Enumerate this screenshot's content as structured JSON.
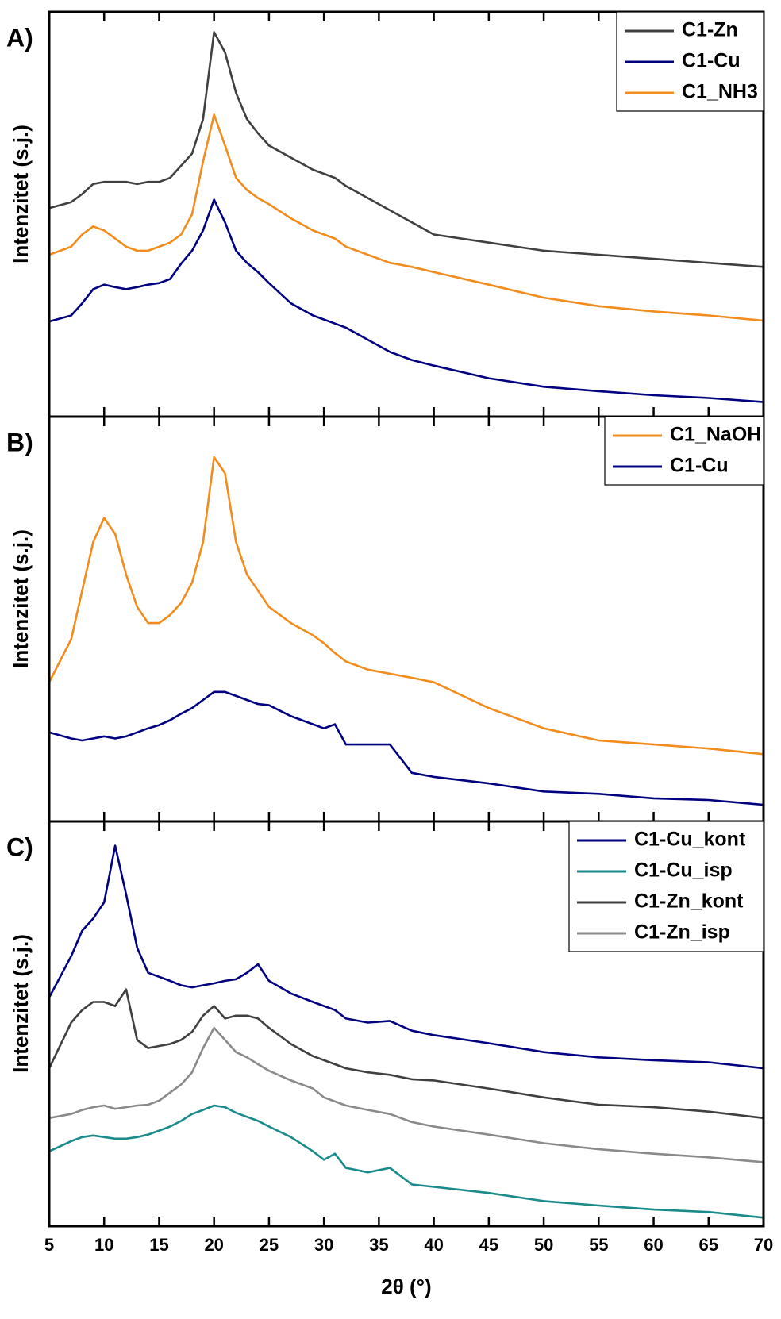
{
  "chart_data": [
    {
      "type": "line",
      "label": "A)",
      "y_label": "Intenzitet (s.j.)",
      "legend": "upper right",
      "show_xtick_labels": false,
      "xlim": [
        5,
        70
      ],
      "xticks": [
        5,
        10,
        15,
        20,
        25,
        30,
        35,
        40,
        45,
        50,
        55,
        60,
        65,
        70
      ],
      "ylim": [
        0,
        100
      ],
      "x": [
        5,
        7,
        8,
        9,
        10,
        11,
        12,
        13,
        14,
        15,
        16,
        17,
        18,
        19,
        20,
        21,
        22,
        23,
        24,
        25,
        27,
        29,
        30,
        31,
        32,
        34,
        36,
        38,
        40,
        45,
        50,
        55,
        60,
        65,
        70
      ],
      "series": [
        {
          "name": "C1-Zn",
          "color": "#404040",
          "values": [
            51.5,
            53,
            55,
            57.5,
            58,
            58,
            58,
            57.5,
            58,
            58,
            59,
            62,
            65,
            73.5,
            95,
            90,
            80,
            73.5,
            70,
            67,
            64,
            61,
            60,
            59,
            57,
            54,
            51,
            48,
            45,
            43,
            41,
            40,
            39,
            38,
            37
          ]
        },
        {
          "name": "C1-Cu",
          "color": "#000080",
          "values": [
            23.5,
            25,
            28,
            31.5,
            32.6,
            32,
            31.5,
            32,
            32.6,
            33,
            34,
            37.8,
            41,
            46,
            53.6,
            48,
            41,
            38,
            35.7,
            33,
            28,
            25,
            24,
            23,
            22,
            19,
            16,
            14,
            12.6,
            9.5,
            7.4,
            6.3,
            5.3,
            4.6,
            3.6
          ]
        },
        {
          "name": "C1_NH3",
          "color": "#f28c1c",
          "values": [
            40,
            42,
            45,
            47,
            46,
            44,
            42,
            41,
            41,
            42,
            43,
            45,
            50,
            63,
            74.6,
            67,
            59,
            56,
            54,
            52.5,
            49,
            46,
            45,
            44,
            42,
            40,
            38,
            37,
            35.7,
            32.6,
            29.4,
            27.3,
            26,
            25,
            23.7
          ]
        }
      ]
    },
    {
      "type": "line",
      "label": "B)",
      "y_label": "Intenzitet (s.j.)",
      "legend": "upper right",
      "show_xtick_labels": false,
      "xlim": [
        5,
        70
      ],
      "xticks": [
        5,
        10,
        15,
        20,
        25,
        30,
        35,
        40,
        45,
        50,
        55,
        60,
        65,
        70
      ],
      "ylim": [
        0,
        100
      ],
      "x": [
        5,
        7,
        8,
        9,
        10,
        11,
        12,
        13,
        14,
        15,
        16,
        17,
        18,
        19,
        20,
        21,
        22,
        23,
        24,
        25,
        27,
        29,
        30,
        31,
        32,
        34,
        36,
        38,
        40,
        45,
        50,
        55,
        60,
        65,
        70
      ],
      "series": [
        {
          "name": "C1_NaOH",
          "color": "#f28c1c",
          "values": [
            34.4,
            45,
            57,
            69,
            75,
            71,
            61,
            53,
            49,
            49,
            51,
            54,
            59,
            69,
            90,
            86,
            69,
            61,
            57,
            53,
            49,
            46,
            44,
            41.6,
            39.5,
            37.5,
            36.5,
            35.5,
            34.4,
            28,
            23,
            20,
            19,
            18,
            16.6
          ]
        },
        {
          "name": "C1-Cu",
          "color": "#000080",
          "values": [
            22,
            20.5,
            20,
            20.5,
            21,
            20.5,
            21,
            22,
            23,
            23.8,
            25,
            26.6,
            28,
            30,
            32,
            32,
            31,
            30,
            29,
            28.7,
            26,
            24,
            23,
            24,
            19,
            19,
            19,
            12,
            11,
            9.4,
            7.4,
            6.8,
            5.7,
            5.3,
            4.1
          ]
        }
      ]
    },
    {
      "type": "line",
      "label": "C)",
      "y_label": "Intenzitet (s.j.)",
      "x_label": "2θ (°)",
      "legend": "upper right",
      "show_xtick_labels": true,
      "xlim": [
        5,
        70
      ],
      "xticks": [
        5,
        10,
        15,
        20,
        25,
        30,
        35,
        40,
        45,
        50,
        55,
        60,
        65,
        70
      ],
      "ylim": [
        0,
        100
      ],
      "x": [
        5,
        7,
        8,
        9,
        10,
        11,
        12,
        13,
        14,
        15,
        16,
        17,
        18,
        19,
        20,
        21,
        22,
        23,
        24,
        25,
        27,
        29,
        30,
        31,
        32,
        34,
        36,
        38,
        40,
        45,
        50,
        55,
        60,
        65,
        70
      ],
      "series": [
        {
          "name": "C1-Cu_kont",
          "color": "#000080",
          "values": [
            56.5,
            66.7,
            73,
            76,
            80,
            94,
            82,
            68.8,
            62.6,
            61.6,
            60.6,
            59.5,
            59,
            59.5,
            60,
            60.6,
            61,
            62.6,
            64.7,
            60.6,
            57.5,
            55.4,
            54.4,
            53.4,
            51.3,
            50.3,
            50.7,
            48.3,
            47.2,
            45.2,
            43,
            41.7,
            41,
            40.5,
            39
          ]
        },
        {
          "name": "C1-Cu_isp",
          "color": "#1a8a8a",
          "values": [
            18.5,
            21,
            22,
            22.4,
            22,
            21.6,
            21.6,
            22,
            22.6,
            23.6,
            24.6,
            26,
            27.7,
            28.7,
            29.8,
            29.4,
            28,
            27,
            26,
            24.6,
            22,
            18.5,
            16.4,
            17.9,
            14.4,
            13.3,
            14.4,
            10.3,
            9.7,
            8.2,
            6.2,
            5.1,
            4.1,
            3.5,
            2.1
          ]
        },
        {
          "name": "C1-Zn_kont",
          "color": "#404040",
          "values": [
            39,
            50.3,
            53.4,
            55.4,
            55.4,
            54.4,
            58.5,
            46,
            44,
            44.5,
            45,
            46,
            48,
            52,
            54.4,
            51.3,
            52,
            52,
            51.3,
            49,
            45,
            42,
            41,
            40,
            39,
            38,
            37.4,
            36.3,
            36,
            34,
            31.8,
            30,
            29.4,
            28.3,
            26.7
          ]
        },
        {
          "name": "C1-Zn_isp",
          "color": "#8a8a8a",
          "values": [
            26.7,
            27.7,
            28.7,
            29.4,
            29.8,
            29,
            29.4,
            29.8,
            30,
            31,
            33,
            35,
            38,
            44,
            49,
            46,
            43,
            41.7,
            40,
            38.4,
            36,
            34,
            31.8,
            30.8,
            29.8,
            28.7,
            27.7,
            25.7,
            24.6,
            22.6,
            20.5,
            19,
            17.9,
            17,
            15.8
          ]
        }
      ]
    }
  ]
}
